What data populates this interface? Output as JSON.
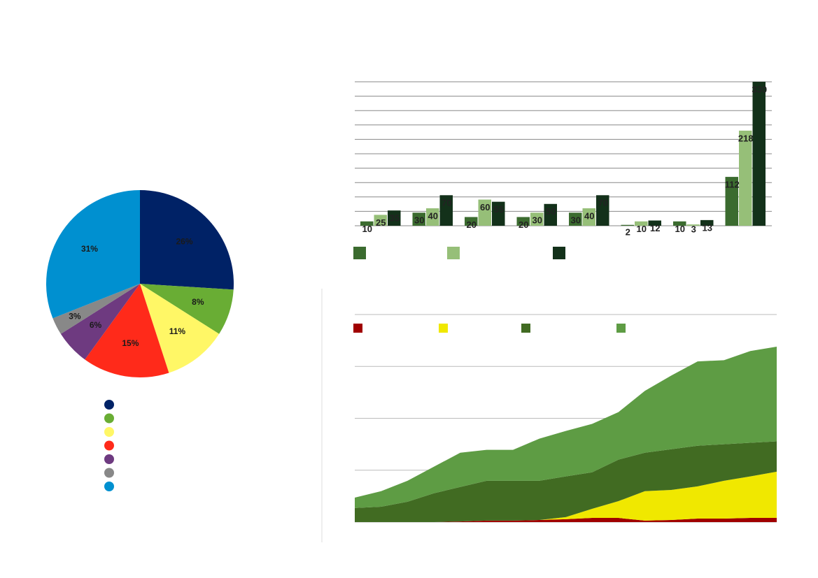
{
  "chart_data": [
    {
      "type": "pie",
      "categories": [
        null,
        null,
        null,
        null,
        null,
        null,
        null
      ],
      "values": [
        26,
        8,
        11,
        15,
        6,
        3,
        31
      ],
      "value_labels": [
        "26%",
        "8%",
        "11%",
        "15%",
        "6%",
        "3%",
        "31%"
      ],
      "colors": [
        "#002266",
        "#69ad34",
        "#fff766",
        "#ff2a1a",
        "#6e3a80",
        "#888888",
        "#0090d0"
      ]
    },
    {
      "type": "bar",
      "categories": [
        null,
        null,
        null,
        null,
        null,
        null,
        null,
        null
      ],
      "series": [
        {
          "color": "#3b6b2f",
          "values": [
            10,
            30,
            20,
            20,
            30,
            2,
            10,
            112
          ]
        },
        {
          "color": "#96bf78",
          "values": [
            25,
            40,
            60,
            30,
            40,
            10,
            3,
            218
          ]
        },
        {
          "color": "#13311a",
          "values": [
            35,
            70,
            55,
            50,
            70,
            12,
            13,
            330
          ]
        }
      ],
      "ylim": [
        0,
        330
      ],
      "yticks": [
        0,
        33,
        66,
        99,
        132,
        165,
        198,
        231,
        264,
        297,
        330
      ],
      "grid": true
    },
    {
      "type": "stacked-area",
      "categories": [
        null,
        null,
        null,
        null,
        null,
        null,
        null,
        null,
        null,
        null,
        null,
        null,
        null,
        null,
        null,
        null,
        null
      ],
      "series": [
        {
          "color": "#a00000",
          "values": [
            0,
            0,
            0,
            0,
            0.3,
            0.7,
            0.7,
            1,
            1.4,
            2,
            2,
            0.7,
            1,
            1.7,
            1.7,
            2,
            2
          ]
        },
        {
          "color": "#f0e800",
          "values": [
            0,
            0,
            0,
            0,
            0,
            0,
            0,
            0,
            1,
            4.4,
            8.1,
            14.2,
            14.5,
            15.5,
            18.2,
            20,
            22.3
          ]
        },
        {
          "color": "#416b22",
          "values": [
            6.8,
            7.4,
            9.8,
            13.9,
            16.6,
            19.2,
            19.2,
            18.9,
            19.6,
            17.6,
            20,
            18.5,
            19.6,
            19.6,
            17.6,
            16.2,
            14.6
          ]
        },
        {
          "color": "#5e9c44",
          "values": [
            5,
            7.5,
            10.1,
            12.8,
            16.5,
            14.9,
            14.9,
            20.3,
            21.9,
            23.3,
            22.9,
            29.8,
            35.5,
            40.6,
            40.5,
            44.2,
            45.6
          ]
        }
      ],
      "ylim": [
        0,
        100
      ],
      "yticks": [
        0,
        25,
        50,
        75,
        100
      ],
      "grid": true
    }
  ]
}
